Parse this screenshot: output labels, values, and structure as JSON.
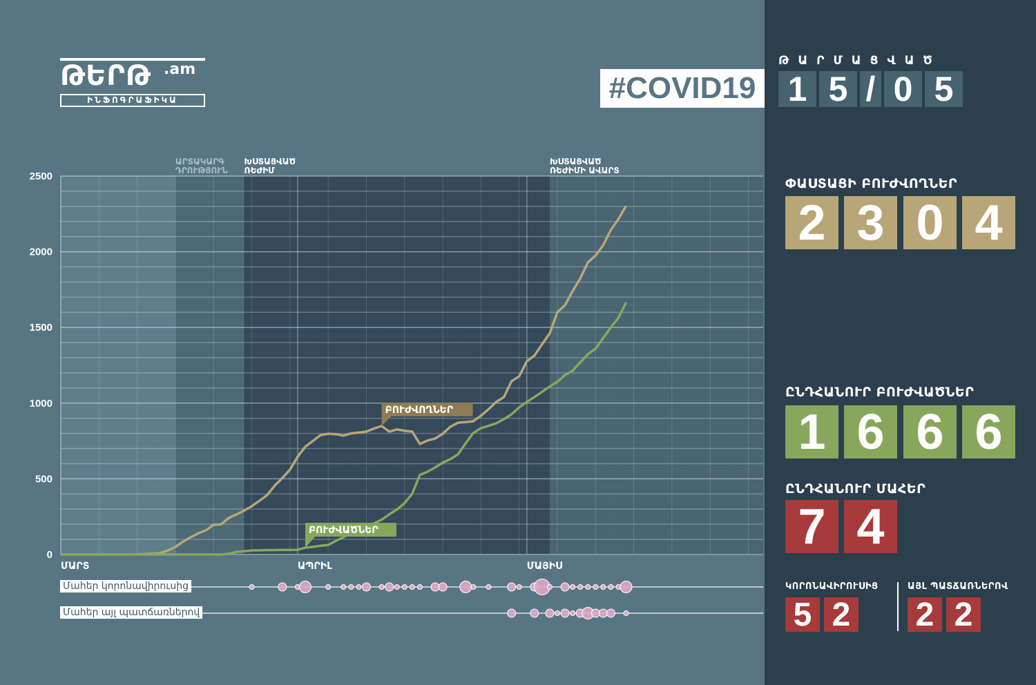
{
  "logo": {
    "name": "ԹԵՐԹ",
    "suffix": ".am",
    "subtitle": "ԻՆՖՈԳՐԱՖԻԿԱ"
  },
  "hashtag": "#COVID19",
  "updated": {
    "label": "ԹԱՐՄԱՑՎԱԾ",
    "chars": [
      "1",
      "5",
      "/",
      "0",
      "5"
    ]
  },
  "active": {
    "label": "ՓԱՍՏԱՑԻ ԲՈՒԺՎՈՂՆԵՐ",
    "digits": [
      "2",
      "3",
      "0",
      "4"
    ]
  },
  "recovered": {
    "label": "ԸՆԴՀԱՆՈՒՐ ԲՈՒԺՎԱԾՆԵՐ",
    "digits": [
      "1",
      "6",
      "6",
      "6"
    ]
  },
  "deaths": {
    "label": "ԸՆԴՀԱՆՈՒՐ ՄԱՀԵՐ",
    "digits": [
      "7",
      "4"
    ],
    "covid": {
      "label": "ԿՈՐՈՆԱՎԻՐՈՒՍԻՑ",
      "digits": [
        "5",
        "2"
      ]
    },
    "other": {
      "label": "ԱՅԼ ՊԱՏՃԱՌՆԵՐՈՎ",
      "digits": [
        "2",
        "2"
      ]
    }
  },
  "colors": {
    "background": "#587583",
    "panel": "#2c3f4d",
    "active": "#b8a678",
    "recovered": "#88a75d",
    "deaths": "#a73a3a",
    "bubble": "#e0a8c4"
  },
  "chart_data": {
    "type": "line",
    "xlim": [
      "03-01",
      "05-31"
    ],
    "ylim": [
      0,
      2500
    ],
    "yticks": [
      "0",
      "500",
      "1000",
      "1500",
      "2000",
      "2500"
    ],
    "xticks": [
      {
        "date": "03-01",
        "label": "ՄԱՐՏ"
      },
      {
        "date": "04-01",
        "label": "ԱՊՐԻԼ"
      },
      {
        "date": "05-01",
        "label": "ՄԱՅԻՍ"
      }
    ],
    "grid": true,
    "periods": [
      {
        "start": "03-16",
        "end": "03-25",
        "label": [
          "ԱՐՏԱԿԱՐԳ",
          "ԴՐՈՒԹՅՈՒՆ"
        ]
      },
      {
        "start": "03-25",
        "end": "05-04",
        "label": [
          "ԽՍՏԱՑՎԱԾ",
          "ՌԵԺԻՄ"
        ]
      },
      {
        "start": "05-04",
        "end": "05-31",
        "label": [
          "ԽՍՏԱՑՎԱԾ",
          "ՌԵԺԻՄԻ ԱՎԱՐՏ"
        ]
      }
    ],
    "start_date": "03-01",
    "series": [
      {
        "name": "ԲՈՒԺՎՈՂՆԵՐ",
        "color": "#b8a678",
        "label_date": "04-12",
        "values": [
          0,
          0,
          0,
          0,
          0,
          0,
          0,
          0,
          0,
          0,
          1,
          3,
          6,
          9,
          27,
          50,
          85,
          114,
          140,
          160,
          196,
          200,
          242,
          265,
          290,
          319,
          355,
          392,
          455,
          505,
          560,
          645,
          712,
          750,
          789,
          798,
          795,
          785,
          800,
          805,
          812,
          832,
          849,
          812,
          826,
          817,
          812,
          730,
          753,
          766,
          798,
          844,
          871,
          875,
          880,
          917,
          960,
          1008,
          1040,
          1145,
          1177,
          1277,
          1314,
          1390,
          1460,
          1601,
          1647,
          1740,
          1825,
          1930,
          1975,
          2044,
          2144,
          2217,
          2304
        ]
      },
      {
        "name": "ԲՈՒԺՎԱԾՆԵՐ",
        "color": "#88a75d",
        "label_date": "04-02",
        "values": [
          0,
          0,
          0,
          0,
          0,
          0,
          0,
          0,
          0,
          0,
          0,
          0,
          0,
          0,
          0,
          0,
          0,
          0,
          0,
          0,
          0,
          0,
          5,
          18,
          22,
          27,
          28,
          29,
          29,
          30,
          30,
          31,
          45,
          50,
          58,
          63,
          90,
          114,
          150,
          170,
          190,
          205,
          230,
          265,
          297,
          340,
          401,
          525,
          547,
          575,
          607,
          630,
          662,
          735,
          803,
          835,
          850,
          867,
          894,
          926,
          972,
          1008,
          1040,
          1075,
          1109,
          1141,
          1186,
          1214,
          1270,
          1323,
          1360,
          1430,
          1500,
          1565,
          1666
        ]
      }
    ],
    "bubbles": [
      {
        "name": "Մահեր կորոնավիրուսից",
        "points": [
          [
            "03-26",
            1
          ],
          [
            "03-30",
            2
          ],
          [
            "04-01",
            1
          ],
          [
            "04-02",
            3
          ],
          [
            "04-05",
            1
          ],
          [
            "04-07",
            1
          ],
          [
            "04-08",
            1
          ],
          [
            "04-09",
            1
          ],
          [
            "04-10",
            2
          ],
          [
            "04-12",
            1
          ],
          [
            "04-13",
            2
          ],
          [
            "04-14",
            1
          ],
          [
            "04-15",
            1
          ],
          [
            "04-16",
            1
          ],
          [
            "04-17",
            1
          ],
          [
            "04-19",
            2
          ],
          [
            "04-20",
            2
          ],
          [
            "04-23",
            3
          ],
          [
            "04-24",
            1
          ],
          [
            "04-26",
            1
          ],
          [
            "04-29",
            2
          ],
          [
            "04-30",
            1
          ],
          [
            "05-02",
            2
          ],
          [
            "05-03",
            5
          ],
          [
            "05-04",
            1
          ],
          [
            "05-06",
            2
          ],
          [
            "05-07",
            1
          ],
          [
            "05-08",
            1
          ],
          [
            "05-09",
            1
          ],
          [
            "05-10",
            1
          ],
          [
            "05-11",
            1
          ],
          [
            "05-12",
            1
          ],
          [
            "05-13",
            1
          ],
          [
            "05-14",
            3
          ]
        ]
      },
      {
        "name": "Մահեր այլ պատճառներով",
        "points": [
          [
            "04-29",
            2
          ],
          [
            "05-02",
            2
          ],
          [
            "05-04",
            2
          ],
          [
            "05-05",
            1
          ],
          [
            "05-06",
            2
          ],
          [
            "05-07",
            1
          ],
          [
            "05-08",
            2
          ],
          [
            "05-09",
            3
          ],
          [
            "05-10",
            2
          ],
          [
            "05-11",
            2
          ],
          [
            "05-12",
            2
          ],
          [
            "05-14",
            1
          ]
        ]
      }
    ]
  }
}
